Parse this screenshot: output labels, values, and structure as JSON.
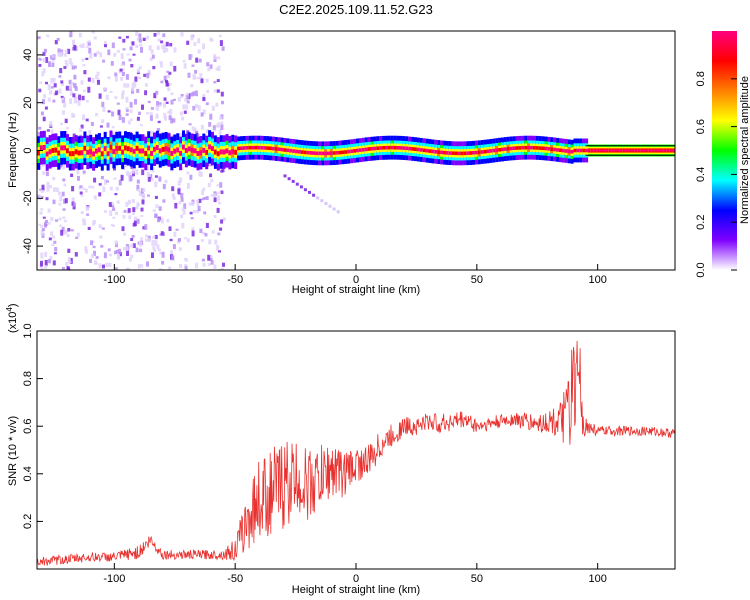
{
  "title": "C2E2.2025.109.11.52.G23",
  "colors": {
    "snr_line": "#e8312e",
    "axis": "#000000",
    "background": "#ffffff"
  },
  "chart_data": [
    {
      "type": "heatmap",
      "name": "spectrogram",
      "xlabel": "Height of straight line (km)",
      "ylabel": "Frequency (Hz)",
      "xlim": [
        -132,
        132
      ],
      "ylim": [
        -50,
        50
      ],
      "xticks": [
        -100,
        -50,
        0,
        50,
        100
      ],
      "yticks": [
        -40,
        -20,
        0,
        20,
        40
      ],
      "ridge": {
        "frequency": 0,
        "description_range_km": [
          -132,
          132
        ]
      },
      "noise_region_km": [
        -132,
        -55
      ],
      "streak": {
        "from": [
          -30,
          -10
        ],
        "to": [
          -8,
          -25
        ]
      },
      "colorbar": {
        "label": "Normalized spectral amplitude",
        "ticks": [
          "0.0",
          "0.2",
          "0.4",
          "0.6",
          "0.8"
        ],
        "range": [
          0,
          1
        ],
        "stops": [
          "#ffffff",
          "#7f00ff",
          "#0000ff",
          "#00ffff",
          "#00ff00",
          "#ffff00",
          "#ff7f00",
          "#ff0000",
          "#ff0080"
        ]
      }
    },
    {
      "type": "line",
      "name": "snr",
      "xlabel": "Height of straight line (km)",
      "ylabel": "SNR (10 * v/v)",
      "scale_label": "(x10",
      "scale_exponent": "4",
      "scale_close": ")",
      "xlim": [
        -132,
        132
      ],
      "ylim": [
        0,
        1.0
      ],
      "xticks": [
        -100,
        -50,
        0,
        50,
        100
      ],
      "yticks": [
        "0.2",
        "0.4",
        "0.6",
        "0.8",
        "1.0"
      ],
      "series": [
        {
          "name": "SNR",
          "x": [
            -132,
            -120,
            -110,
            -100,
            -90,
            -85,
            -80,
            -70,
            -60,
            -55,
            -50,
            -45,
            -40,
            -35,
            -30,
            -25,
            -20,
            -15,
            -10,
            -5,
            0,
            5,
            10,
            15,
            20,
            25,
            30,
            35,
            40,
            45,
            50,
            55,
            60,
            65,
            70,
            75,
            80,
            85,
            88,
            90,
            92,
            95,
            100,
            110,
            120,
            132
          ],
          "values": [
            0.03,
            0.04,
            0.05,
            0.05,
            0.07,
            0.12,
            0.06,
            0.06,
            0.06,
            0.06,
            0.08,
            0.2,
            0.3,
            0.32,
            0.36,
            0.38,
            0.35,
            0.38,
            0.42,
            0.4,
            0.44,
            0.45,
            0.52,
            0.56,
            0.6,
            0.6,
            0.62,
            0.61,
            0.62,
            0.63,
            0.6,
            0.61,
            0.62,
            0.63,
            0.62,
            0.61,
            0.62,
            0.62,
            0.66,
            0.72,
            0.68,
            0.6,
            0.58,
            0.58,
            0.58,
            0.57
          ],
          "spread": [
            0.02,
            0.02,
            0.02,
            0.02,
            0.03,
            0.03,
            0.02,
            0.02,
            0.02,
            0.02,
            0.05,
            0.12,
            0.18,
            0.18,
            0.2,
            0.16,
            0.16,
            0.14,
            0.12,
            0.1,
            0.08,
            0.07,
            0.06,
            0.05,
            0.04,
            0.04,
            0.04,
            0.04,
            0.04,
            0.04,
            0.03,
            0.03,
            0.03,
            0.03,
            0.04,
            0.04,
            0.05,
            0.08,
            0.18,
            0.26,
            0.14,
            0.04,
            0.02,
            0.02,
            0.02,
            0.02
          ]
        }
      ]
    }
  ]
}
